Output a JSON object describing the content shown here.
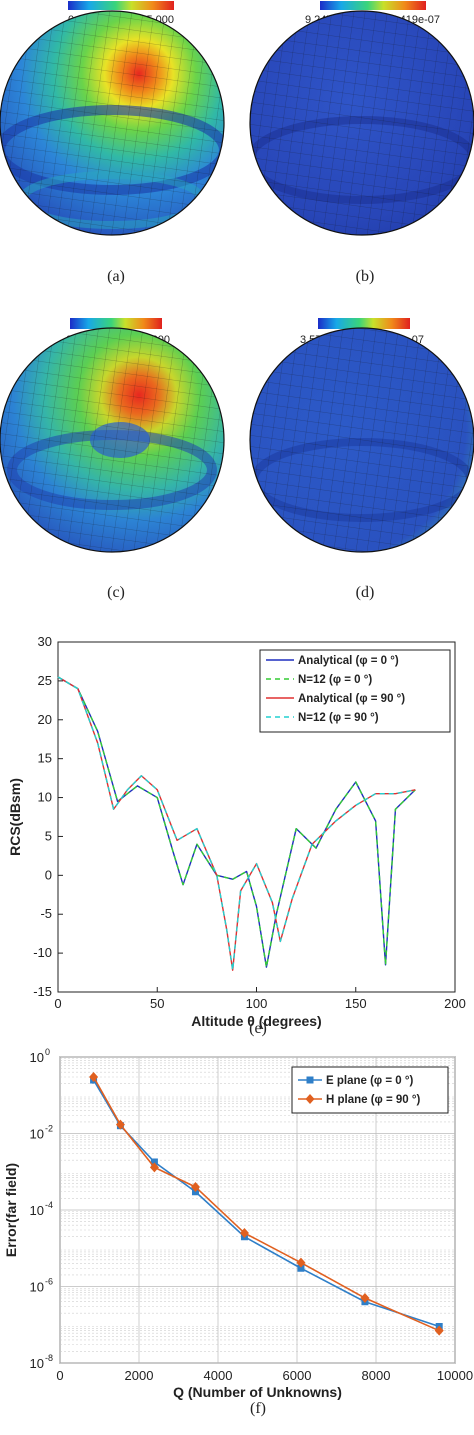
{
  "captions": [
    "(a)",
    "(b)",
    "(c)",
    "(d)",
    "(e)",
    "(f)"
  ],
  "sphere_panels": [
    {
      "caption": "(a)",
      "colorbar_min": "0.000",
      "colorbar_max": "5.000",
      "hotspot": "red peak at upper right"
    },
    {
      "caption": "(b)",
      "colorbar_min": "9.247e-09",
      "colorbar_max": "7.419e-07",
      "hotspot": "uniform blue"
    },
    {
      "caption": "(c)",
      "colorbar_min": "0.000",
      "colorbar_max": "3.300",
      "hotspot": "red peak at upper right"
    },
    {
      "caption": "(d)",
      "colorbar_min": "3.570e-09",
      "colorbar_max": "2.258e-07",
      "hotspot": "uniform blue"
    }
  ],
  "colors": {
    "sphere_low": "#2a4fc8",
    "sphere_mid": "#3ec7a0",
    "sphere_high": "#e8271f",
    "mesh": "#111111"
  },
  "chart_data": [
    {
      "type": "line",
      "title": "",
      "xlabel": "Altitude θ (degrees)",
      "ylabel": "RCS(dBsm)",
      "xlim": [
        0,
        200
      ],
      "ylim": [
        -15,
        30
      ],
      "xticks": [
        "0",
        "50",
        "100",
        "150",
        "200"
      ],
      "yticks": [
        "-15",
        "-10",
        "-5",
        "0",
        "5",
        "10",
        "15",
        "20",
        "25",
        "30"
      ],
      "grid": false,
      "legend_position": "top-right",
      "legend": [
        "Analytical (φ = 0 °)",
        "N=12 (φ = 0 °)",
        "Analytical (φ = 90 °)",
        "N=12 (φ = 90 °)"
      ],
      "series": [
        {
          "name": "Analytical (φ = 0 °)",
          "color": "#1f2fbf",
          "dash": "solid",
          "x": [
            0,
            10,
            20,
            30,
            40,
            50,
            58,
            63,
            70,
            80,
            88,
            95,
            100,
            105,
            110,
            120,
            130,
            140,
            150,
            160,
            165,
            170,
            180
          ],
          "y": [
            25.5,
            24,
            18.5,
            9.5,
            11.5,
            10,
            3,
            -1.2,
            4,
            0,
            -0.5,
            0.5,
            -4,
            -11.8,
            -5,
            6,
            3.5,
            8.5,
            12,
            7,
            -11.5,
            8.5,
            11
          ]
        },
        {
          "name": "N=12 (φ = 0 °)",
          "color": "#33cc33",
          "dash": "dashed",
          "x": [
            0,
            10,
            20,
            30,
            40,
            50,
            58,
            63,
            70,
            80,
            88,
            95,
            100,
            105,
            110,
            120,
            130,
            140,
            150,
            160,
            165,
            170,
            180
          ],
          "y": [
            25.5,
            24,
            18.5,
            9.5,
            11.5,
            10,
            3,
            -1.2,
            4,
            0,
            -0.5,
            0.5,
            -4,
            -11.8,
            -5,
            6,
            3.5,
            8.5,
            12,
            7,
            -11.5,
            8.5,
            11
          ]
        },
        {
          "name": "Analytical (φ = 90 °)",
          "color": "#e03030",
          "dash": "solid",
          "x": [
            0,
            10,
            20,
            28,
            35,
            42,
            50,
            60,
            70,
            80,
            85,
            88,
            92,
            100,
            108,
            112,
            118,
            128,
            140,
            150,
            160,
            170,
            180
          ],
          "y": [
            25.5,
            24,
            17,
            8.5,
            11,
            12.8,
            11,
            4.5,
            6,
            0,
            -7,
            -12.2,
            -2,
            1.5,
            -3.5,
            -8.5,
            -3,
            4,
            7,
            9,
            10.5,
            10.5,
            11
          ]
        },
        {
          "name": "N=12 (φ = 90 °)",
          "color": "#22d0d0",
          "dash": "dashed",
          "x": [
            0,
            10,
            20,
            28,
            35,
            42,
            50,
            60,
            70,
            80,
            85,
            88,
            92,
            100,
            108,
            112,
            118,
            128,
            140,
            150,
            160,
            170,
            180
          ],
          "y": [
            25.5,
            24,
            17,
            8.5,
            11,
            12.8,
            11,
            4.5,
            6,
            0,
            -7,
            -12.2,
            -2,
            1.5,
            -3.5,
            -8.5,
            -3,
            4,
            7,
            9,
            10.5,
            10.5,
            11
          ]
        }
      ]
    },
    {
      "type": "line",
      "title": "",
      "xlabel": "Q (Number of Unknowns)",
      "ylabel": "Error(far field)",
      "xlim": [
        0,
        10000
      ],
      "ylim": [
        1e-08,
        1
      ],
      "yscale": "log",
      "xticks": [
        "0",
        "2000",
        "4000",
        "6000",
        "8000",
        "10000"
      ],
      "yticks": [
        "10",
        "10",
        "10",
        "10",
        "10"
      ],
      "ytick_exponents": [
        "0",
        "-2",
        "-4",
        "-6",
        "-8"
      ],
      "grid": true,
      "legend_position": "top-right",
      "legend": [
        "E plane (φ = 0 °)",
        "H plane (φ = 90 °)"
      ],
      "series": [
        {
          "name": "E plane (φ = 0 °)",
          "color": "#2f7fc8",
          "marker": "square",
          "x": [
            850,
            1530,
            2390,
            3430,
            4670,
            6100,
            7720,
            9600
          ],
          "y": [
            0.25,
            0.016,
            0.0018,
            0.0003,
            2e-05,
            3e-06,
            4e-07,
            9e-08
          ]
        },
        {
          "name": "H plane (φ = 90 °)",
          "color": "#e06020",
          "marker": "diamond",
          "x": [
            850,
            1530,
            2390,
            3430,
            4670,
            6100,
            7720,
            9600
          ],
          "y": [
            0.3,
            0.017,
            0.0013,
            0.0004,
            2.5e-05,
            4.2e-06,
            5e-07,
            7e-08
          ]
        }
      ]
    }
  ]
}
